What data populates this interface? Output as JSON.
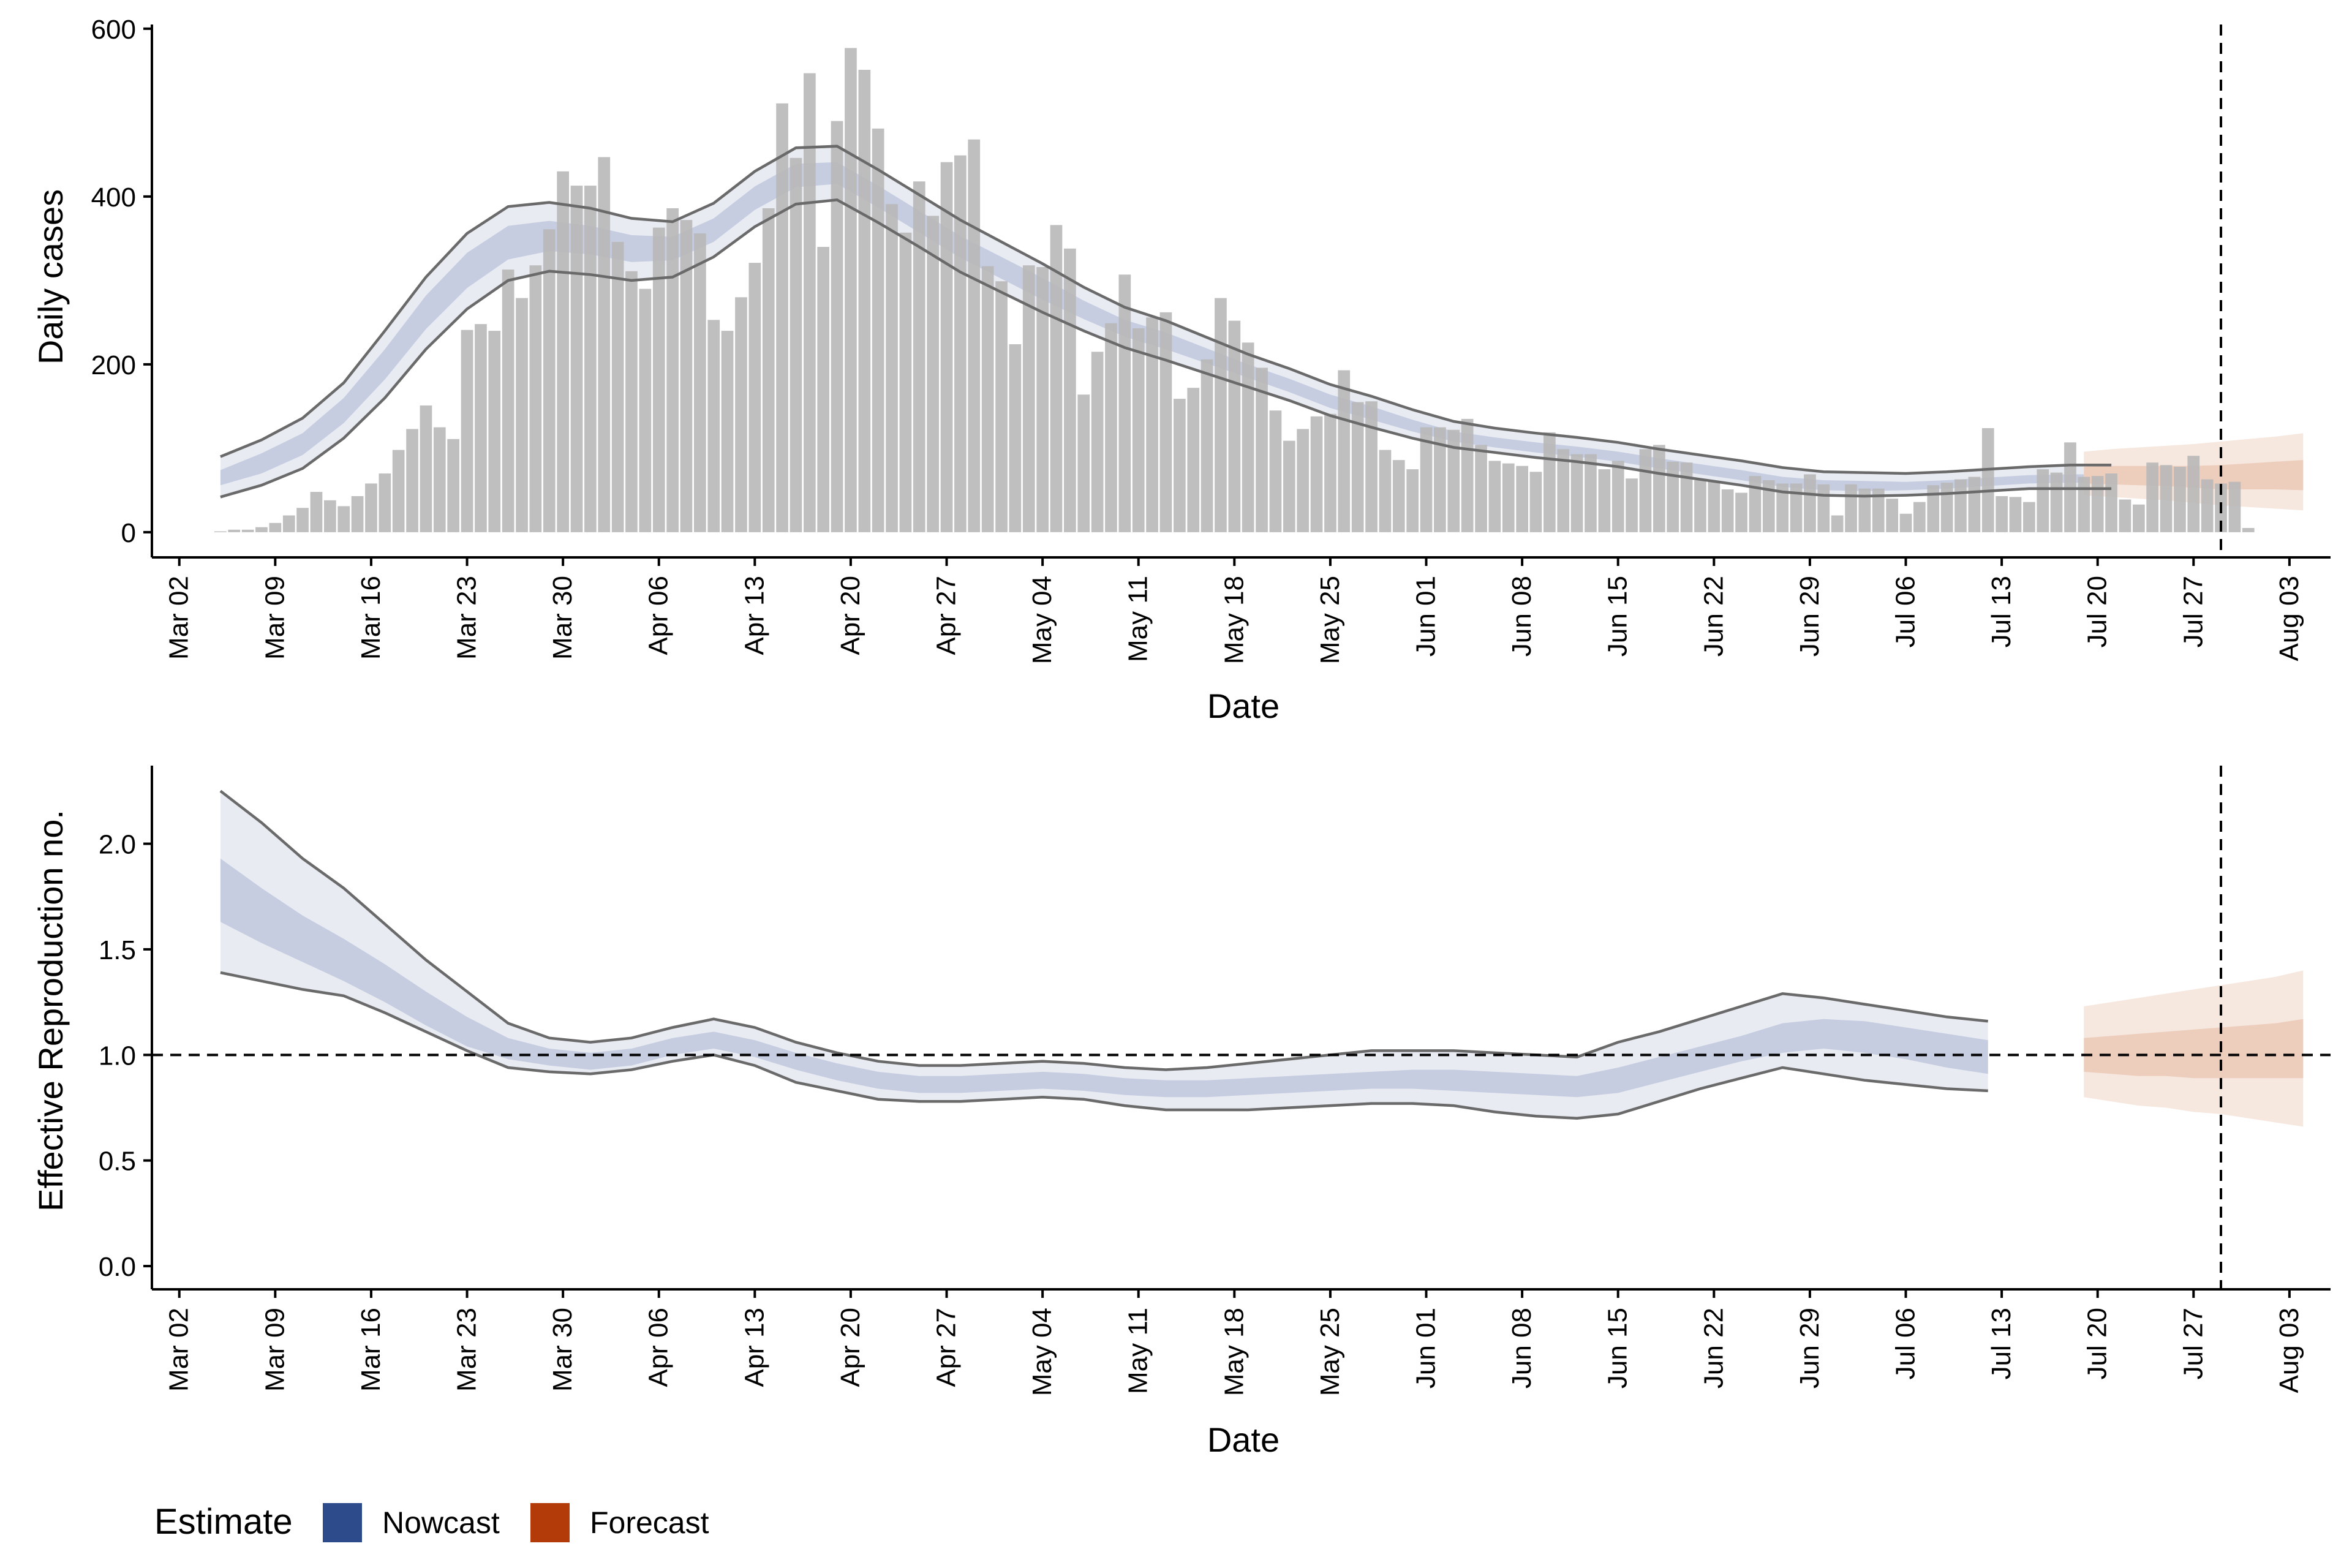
{
  "colors": {
    "bars": "#b8b8b8",
    "nowcast": "#2d4a8a",
    "forecast": "#b33a09",
    "nowcast_band_outer": "#e9ebf3",
    "nowcast_band_inner": "#c2cade",
    "forecast_band_outer": "#f6e7df",
    "forecast_band_inner": "#eccab8",
    "bound_line": "#6a6a6a",
    "reference_line": "#000000"
  },
  "legend": {
    "title": "Estimate",
    "items": [
      {
        "label": "Nowcast",
        "color": "#2d4a8a"
      },
      {
        "label": "Forecast",
        "color": "#b33a09"
      }
    ]
  },
  "chart_data": [
    {
      "type": "bar",
      "ylabel": "Daily cases",
      "xlabel": "Date",
      "ylim": [
        -30,
        605
      ],
      "yticks": [
        0,
        200,
        400,
        600
      ],
      "ytick_labels": [
        "0",
        "200",
        "400",
        "600"
      ],
      "x_range": [
        "2020-02-29",
        "2020-08-06"
      ],
      "xticks": [
        "2020-03-02",
        "2020-03-09",
        "2020-03-16",
        "2020-03-23",
        "2020-03-30",
        "2020-04-06",
        "2020-04-13",
        "2020-04-20",
        "2020-04-27",
        "2020-05-04",
        "2020-05-11",
        "2020-05-18",
        "2020-05-25",
        "2020-06-01",
        "2020-06-08",
        "2020-06-15",
        "2020-06-22",
        "2020-06-29",
        "2020-07-06",
        "2020-07-13",
        "2020-07-20",
        "2020-07-27",
        "2020-08-03"
      ],
      "xtick_labels": [
        "Mar 02",
        "Mar 09",
        "Mar 16",
        "Mar 23",
        "Mar 30",
        "Apr 06",
        "Apr 13",
        "Apr 20",
        "Apr 27",
        "May 04",
        "May 11",
        "May 18",
        "May 25",
        "Jun 01",
        "Jun 08",
        "Jun 15",
        "Jun 22",
        "Jun 29",
        "Jul 06",
        "Jul 13",
        "Jul 20",
        "Jul 27",
        "Aug 03"
      ],
      "reference_vline": "2020-07-29",
      "bars": {
        "start": "2020-03-05",
        "values": [
          1,
          3,
          3,
          6,
          11,
          20,
          29,
          48,
          38,
          31,
          43,
          58,
          70,
          98,
          123,
          151,
          125,
          111,
          241,
          248,
          240,
          313,
          279,
          318,
          361,
          430,
          413,
          413,
          447,
          346,
          311,
          290,
          363,
          386,
          372,
          356,
          253,
          240,
          280,
          321,
          386,
          511,
          446,
          547,
          340,
          490,
          577,
          551,
          481,
          391,
          357,
          418,
          377,
          441,
          449,
          468,
          317,
          299,
          224,
          318,
          316,
          366,
          338,
          164,
          215,
          249,
          307,
          243,
          256,
          262,
          159,
          172,
          206,
          279,
          252,
          226,
          196,
          145,
          109,
          123,
          138,
          141,
          193,
          155,
          156,
          98,
          86,
          75,
          125,
          125,
          122,
          135,
          104,
          85,
          82,
          79,
          72,
          119,
          99,
          93,
          93,
          75,
          85,
          64,
          99,
          104,
          84,
          83,
          62,
          61,
          51,
          47,
          67,
          62,
          58,
          58,
          69,
          57,
          20,
          57,
          52,
          52,
          40,
          22,
          36,
          56,
          59,
          63,
          66,
          124,
          43,
          42,
          36,
          75,
          71,
          107,
          66,
          67,
          70,
          39,
          33,
          83,
          80,
          78,
          91,
          63,
          58,
          60,
          5
        ]
      },
      "series": [
        {
          "name": "Nowcast",
          "start": "2020-03-05",
          "step_days": 3,
          "median": [
            65,
            82,
            105,
            145,
            200,
            262,
            312,
            345,
            353,
            348,
            338,
            338,
            360,
            398,
            425,
            428,
            400,
            370,
            340,
            315,
            290,
            265,
            243,
            228,
            210,
            192,
            175,
            156,
            142,
            127,
            114,
            107,
            101,
            96,
            90,
            82,
            75,
            68,
            60,
            56,
            55,
            55,
            57,
            60,
            63,
            64,
            64
          ],
          "lower_50": [
            56,
            70,
            92,
            130,
            182,
            242,
            291,
            325,
            335,
            331,
            322,
            324,
            346,
            384,
            411,
            415,
            387,
            357,
            327,
            302,
            277,
            254,
            233,
            218,
            201,
            184,
            167,
            148,
            134,
            120,
            108,
            101,
            95,
            90,
            84,
            76,
            69,
            62,
            54,
            50,
            49,
            50,
            52,
            55,
            58,
            59,
            59
          ],
          "upper_50": [
            74,
            94,
            118,
            160,
            218,
            282,
            333,
            365,
            371,
            365,
            354,
            352,
            374,
            412,
            439,
            441,
            413,
            383,
            353,
            328,
            303,
            276,
            253,
            238,
            219,
            200,
            183,
            164,
            150,
            134,
            120,
            113,
            107,
            102,
            96,
            88,
            81,
            74,
            66,
            62,
            61,
            60,
            62,
            65,
            68,
            69,
            69
          ],
          "lower_90": [
            42,
            56,
            76,
            112,
            160,
            218,
            266,
            300,
            311,
            307,
            300,
            304,
            328,
            364,
            391,
            396,
            369,
            340,
            310,
            286,
            262,
            240,
            220,
            205,
            189,
            173,
            157,
            139,
            125,
            112,
            101,
            95,
            89,
            84,
            78,
            70,
            63,
            56,
            48,
            44,
            43,
            44,
            46,
            49,
            52,
            52,
            52
          ],
          "upper_90": [
            90,
            110,
            136,
            178,
            240,
            304,
            356,
            388,
            393,
            386,
            374,
            370,
            392,
            430,
            458,
            460,
            432,
            402,
            372,
            346,
            320,
            292,
            268,
            252,
            232,
            212,
            195,
            176,
            162,
            146,
            132,
            124,
            118,
            113,
            107,
            99,
            92,
            85,
            77,
            72,
            71,
            70,
            72,
            75,
            78,
            80,
            80
          ]
        },
        {
          "name": "Forecast",
          "start": "2020-07-19",
          "step_days": 2,
          "median": [
            67,
            67,
            66,
            65,
            64,
            63,
            64,
            65,
            65
          ],
          "lower_50": [
            58,
            57,
            56,
            55,
            53,
            51,
            51,
            51,
            50
          ],
          "upper_50": [
            78,
            79,
            79,
            79,
            79,
            80,
            82,
            84,
            86
          ],
          "lower_90": [
            44,
            42,
            40,
            38,
            35,
            32,
            30,
            28,
            26
          ],
          "upper_90": [
            96,
            99,
            101,
            103,
            105,
            108,
            111,
            114,
            118
          ]
        }
      ]
    },
    {
      "type": "area",
      "ylabel": "Effective Reproduction no.",
      "xlabel": "Date",
      "ylim": [
        -0.11,
        2.37
      ],
      "yticks": [
        0.0,
        0.5,
        1.0,
        1.5,
        2.0
      ],
      "ytick_labels": [
        "0.0",
        "0.5",
        "1.0",
        "1.5",
        "2.0"
      ],
      "x_range": [
        "2020-02-29",
        "2020-08-06"
      ],
      "xticks": [
        "2020-03-02",
        "2020-03-09",
        "2020-03-16",
        "2020-03-23",
        "2020-03-30",
        "2020-04-06",
        "2020-04-13",
        "2020-04-20",
        "2020-04-27",
        "2020-05-04",
        "2020-05-11",
        "2020-05-18",
        "2020-05-25",
        "2020-06-01",
        "2020-06-08",
        "2020-06-15",
        "2020-06-22",
        "2020-06-29",
        "2020-07-06",
        "2020-07-13",
        "2020-07-20",
        "2020-07-27",
        "2020-08-03"
      ],
      "xtick_labels": [
        "Mar 02",
        "Mar 09",
        "Mar 16",
        "Mar 23",
        "Mar 30",
        "Apr 06",
        "Apr 13",
        "Apr 20",
        "Apr 27",
        "May 04",
        "May 11",
        "May 18",
        "May 25",
        "Jun 01",
        "Jun 08",
        "Jun 15",
        "Jun 22",
        "Jun 29",
        "Jul 06",
        "Jul 13",
        "Jul 20",
        "Jul 27",
        "Aug 03"
      ],
      "reference_hline": 1.0,
      "reference_vline": "2020-07-29",
      "series": [
        {
          "name": "Nowcast",
          "start": "2020-03-05",
          "step_days": 3,
          "median": [
            1.78,
            1.66,
            1.55,
            1.45,
            1.34,
            1.22,
            1.11,
            1.03,
            0.99,
            0.97,
            0.99,
            1.04,
            1.07,
            1.03,
            0.97,
            0.92,
            0.88,
            0.86,
            0.86,
            0.87,
            0.88,
            0.87,
            0.85,
            0.84,
            0.84,
            0.85,
            0.86,
            0.87,
            0.88,
            0.88,
            0.88,
            0.87,
            0.86,
            0.85,
            0.88,
            0.93,
            0.98,
            1.03,
            1.08,
            1.1,
            1.09,
            1.06,
            1.02,
            0.99
          ],
          "lower_50": [
            1.63,
            1.53,
            1.44,
            1.35,
            1.25,
            1.14,
            1.04,
            0.98,
            0.95,
            0.93,
            0.95,
            1.0,
            1.03,
            0.99,
            0.93,
            0.88,
            0.84,
            0.82,
            0.82,
            0.83,
            0.84,
            0.83,
            0.81,
            0.8,
            0.8,
            0.81,
            0.82,
            0.83,
            0.84,
            0.84,
            0.83,
            0.82,
            0.81,
            0.8,
            0.82,
            0.87,
            0.92,
            0.97,
            1.01,
            1.03,
            1.01,
            0.98,
            0.94,
            0.91
          ],
          "upper_50": [
            1.93,
            1.79,
            1.66,
            1.55,
            1.43,
            1.3,
            1.18,
            1.08,
            1.03,
            1.01,
            1.03,
            1.08,
            1.11,
            1.07,
            1.01,
            0.96,
            0.92,
            0.9,
            0.9,
            0.91,
            0.92,
            0.91,
            0.89,
            0.88,
            0.88,
            0.89,
            0.9,
            0.91,
            0.92,
            0.93,
            0.93,
            0.92,
            0.91,
            0.9,
            0.94,
            0.99,
            1.04,
            1.09,
            1.15,
            1.17,
            1.16,
            1.13,
            1.1,
            1.07
          ],
          "lower_90": [
            1.39,
            1.35,
            1.31,
            1.28,
            1.2,
            1.11,
            1.02,
            0.94,
            0.92,
            0.91,
            0.93,
            0.97,
            1.0,
            0.95,
            0.87,
            0.83,
            0.79,
            0.78,
            0.78,
            0.79,
            0.8,
            0.79,
            0.76,
            0.74,
            0.74,
            0.74,
            0.75,
            0.76,
            0.77,
            0.77,
            0.76,
            0.73,
            0.71,
            0.7,
            0.72,
            0.78,
            0.84,
            0.89,
            0.94,
            0.91,
            0.88,
            0.86,
            0.84,
            0.83
          ],
          "upper_90": [
            2.25,
            2.1,
            1.93,
            1.79,
            1.62,
            1.45,
            1.3,
            1.15,
            1.08,
            1.06,
            1.08,
            1.13,
            1.17,
            1.13,
            1.06,
            1.01,
            0.97,
            0.95,
            0.95,
            0.96,
            0.97,
            0.96,
            0.94,
            0.93,
            0.94,
            0.96,
            0.98,
            1.0,
            1.02,
            1.02,
            1.02,
            1.01,
            1.0,
            0.99,
            1.06,
            1.11,
            1.17,
            1.23,
            1.29,
            1.27,
            1.24,
            1.21,
            1.18,
            1.16
          ]
        },
        {
          "name": "Forecast",
          "start": "2020-07-19",
          "step_days": 2,
          "median": [
            0.99,
            1.0,
            1.0,
            1.0,
            1.01,
            1.01,
            1.02,
            1.03,
            1.04
          ],
          "lower_50": [
            0.92,
            0.91,
            0.9,
            0.9,
            0.89,
            0.89,
            0.89,
            0.89,
            0.89
          ],
          "upper_50": [
            1.08,
            1.09,
            1.1,
            1.11,
            1.12,
            1.13,
            1.14,
            1.15,
            1.17
          ],
          "lower_90": [
            0.8,
            0.78,
            0.76,
            0.75,
            0.73,
            0.72,
            0.7,
            0.68,
            0.66
          ],
          "upper_90": [
            1.23,
            1.25,
            1.27,
            1.29,
            1.31,
            1.33,
            1.35,
            1.37,
            1.4
          ]
        }
      ]
    }
  ]
}
